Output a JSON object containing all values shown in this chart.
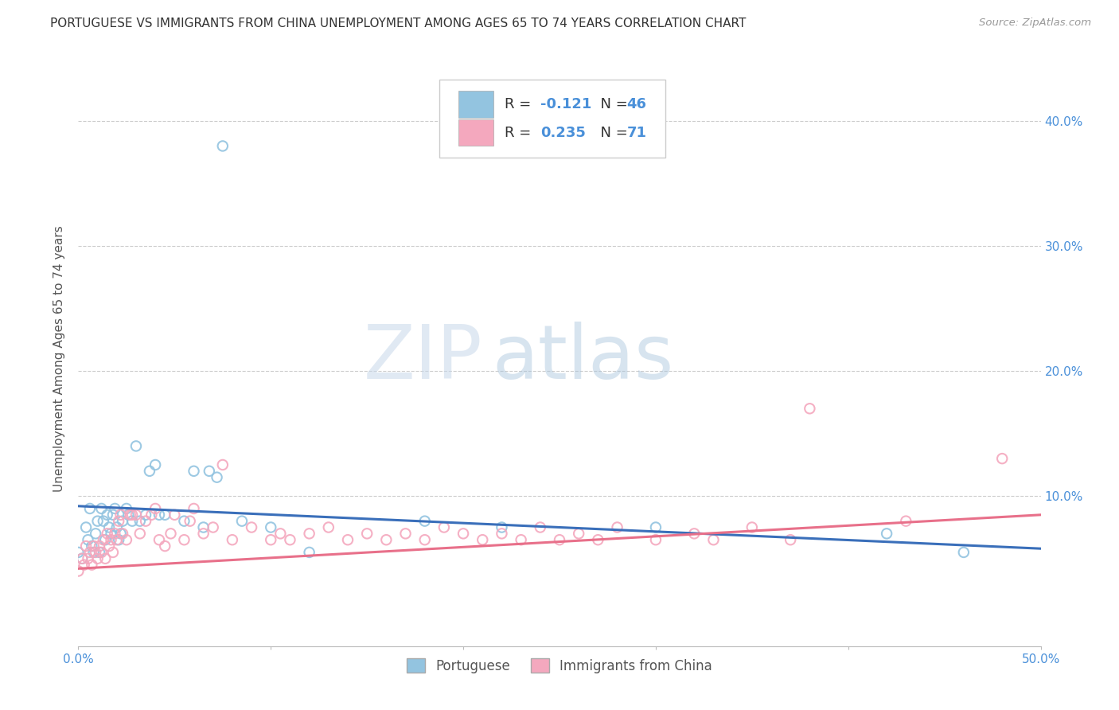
{
  "title": "PORTUGUESE VS IMMIGRANTS FROM CHINA UNEMPLOYMENT AMONG AGES 65 TO 74 YEARS CORRELATION CHART",
  "source": "Source: ZipAtlas.com",
  "ylabel": "Unemployment Among Ages 65 to 74 years",
  "xlim": [
    0.0,
    0.5
  ],
  "ylim": [
    -0.02,
    0.44
  ],
  "xticks": [
    0.0,
    0.1,
    0.2,
    0.3,
    0.4,
    0.5
  ],
  "xticklabels": [
    "0.0%",
    "",
    "",
    "",
    "",
    "50.0%"
  ],
  "yticks": [
    0.1,
    0.2,
    0.3,
    0.4
  ],
  "yticklabels": [
    "10.0%",
    "20.0%",
    "30.0%",
    "40.0%"
  ],
  "watermark_zip": "ZIP",
  "watermark_atlas": "atlas",
  "portuguese_R": -0.121,
  "portuguese_N": 46,
  "china_R": 0.235,
  "china_N": 71,
  "portuguese_color": "#93c4e0",
  "china_color": "#f4a8be",
  "trend_portuguese_color": "#3a6fba",
  "trend_china_color": "#e8708a",
  "background_color": "#ffffff",
  "grid_color": "#cccccc",
  "tick_color": "#4a90d9",
  "title_color": "#333333",
  "ylabel_color": "#555555",
  "portuguese_scatter": [
    [
      0.0,
      0.055
    ],
    [
      0.002,
      0.05
    ],
    [
      0.004,
      0.075
    ],
    [
      0.005,
      0.065
    ],
    [
      0.006,
      0.09
    ],
    [
      0.007,
      0.06
    ],
    [
      0.008,
      0.055
    ],
    [
      0.009,
      0.07
    ],
    [
      0.01,
      0.08
    ],
    [
      0.011,
      0.055
    ],
    [
      0.012,
      0.09
    ],
    [
      0.013,
      0.08
    ],
    [
      0.014,
      0.065
    ],
    [
      0.015,
      0.085
    ],
    [
      0.016,
      0.075
    ],
    [
      0.017,
      0.07
    ],
    [
      0.018,
      0.085
    ],
    [
      0.019,
      0.09
    ],
    [
      0.02,
      0.075
    ],
    [
      0.021,
      0.065
    ],
    [
      0.022,
      0.07
    ],
    [
      0.023,
      0.08
    ],
    [
      0.025,
      0.09
    ],
    [
      0.026,
      0.085
    ],
    [
      0.028,
      0.08
    ],
    [
      0.03,
      0.14
    ],
    [
      0.032,
      0.08
    ],
    [
      0.035,
      0.085
    ],
    [
      0.037,
      0.12
    ],
    [
      0.04,
      0.125
    ],
    [
      0.042,
      0.085
    ],
    [
      0.045,
      0.085
    ],
    [
      0.055,
      0.08
    ],
    [
      0.06,
      0.12
    ],
    [
      0.065,
      0.075
    ],
    [
      0.068,
      0.12
    ],
    [
      0.072,
      0.115
    ],
    [
      0.075,
      0.38
    ],
    [
      0.085,
      0.08
    ],
    [
      0.1,
      0.075
    ],
    [
      0.12,
      0.055
    ],
    [
      0.18,
      0.08
    ],
    [
      0.22,
      0.075
    ],
    [
      0.3,
      0.075
    ],
    [
      0.42,
      0.07
    ],
    [
      0.46,
      0.055
    ]
  ],
  "china_scatter": [
    [
      0.0,
      0.04
    ],
    [
      0.002,
      0.05
    ],
    [
      0.003,
      0.045
    ],
    [
      0.004,
      0.06
    ],
    [
      0.005,
      0.05
    ],
    [
      0.006,
      0.055
    ],
    [
      0.007,
      0.045
    ],
    [
      0.008,
      0.06
    ],
    [
      0.009,
      0.055
    ],
    [
      0.01,
      0.05
    ],
    [
      0.011,
      0.06
    ],
    [
      0.012,
      0.055
    ],
    [
      0.013,
      0.065
    ],
    [
      0.014,
      0.05
    ],
    [
      0.015,
      0.07
    ],
    [
      0.016,
      0.06
    ],
    [
      0.017,
      0.065
    ],
    [
      0.018,
      0.055
    ],
    [
      0.019,
      0.07
    ],
    [
      0.02,
      0.065
    ],
    [
      0.021,
      0.08
    ],
    [
      0.022,
      0.085
    ],
    [
      0.023,
      0.07
    ],
    [
      0.025,
      0.065
    ],
    [
      0.027,
      0.085
    ],
    [
      0.028,
      0.085
    ],
    [
      0.03,
      0.085
    ],
    [
      0.032,
      0.07
    ],
    [
      0.035,
      0.08
    ],
    [
      0.038,
      0.085
    ],
    [
      0.04,
      0.09
    ],
    [
      0.042,
      0.065
    ],
    [
      0.045,
      0.06
    ],
    [
      0.048,
      0.07
    ],
    [
      0.05,
      0.085
    ],
    [
      0.055,
      0.065
    ],
    [
      0.058,
      0.08
    ],
    [
      0.06,
      0.09
    ],
    [
      0.065,
      0.07
    ],
    [
      0.07,
      0.075
    ],
    [
      0.075,
      0.125
    ],
    [
      0.08,
      0.065
    ],
    [
      0.09,
      0.075
    ],
    [
      0.1,
      0.065
    ],
    [
      0.105,
      0.07
    ],
    [
      0.11,
      0.065
    ],
    [
      0.12,
      0.07
    ],
    [
      0.13,
      0.075
    ],
    [
      0.14,
      0.065
    ],
    [
      0.15,
      0.07
    ],
    [
      0.16,
      0.065
    ],
    [
      0.17,
      0.07
    ],
    [
      0.18,
      0.065
    ],
    [
      0.19,
      0.075
    ],
    [
      0.2,
      0.07
    ],
    [
      0.21,
      0.065
    ],
    [
      0.22,
      0.07
    ],
    [
      0.23,
      0.065
    ],
    [
      0.24,
      0.075
    ],
    [
      0.25,
      0.065
    ],
    [
      0.26,
      0.07
    ],
    [
      0.27,
      0.065
    ],
    [
      0.28,
      0.075
    ],
    [
      0.3,
      0.065
    ],
    [
      0.32,
      0.07
    ],
    [
      0.33,
      0.065
    ],
    [
      0.35,
      0.075
    ],
    [
      0.37,
      0.065
    ],
    [
      0.38,
      0.17
    ],
    [
      0.43,
      0.08
    ],
    [
      0.48,
      0.13
    ]
  ],
  "trend_port_start": 0.092,
  "trend_port_end": 0.058,
  "trend_china_start": 0.042,
  "trend_china_end": 0.085
}
